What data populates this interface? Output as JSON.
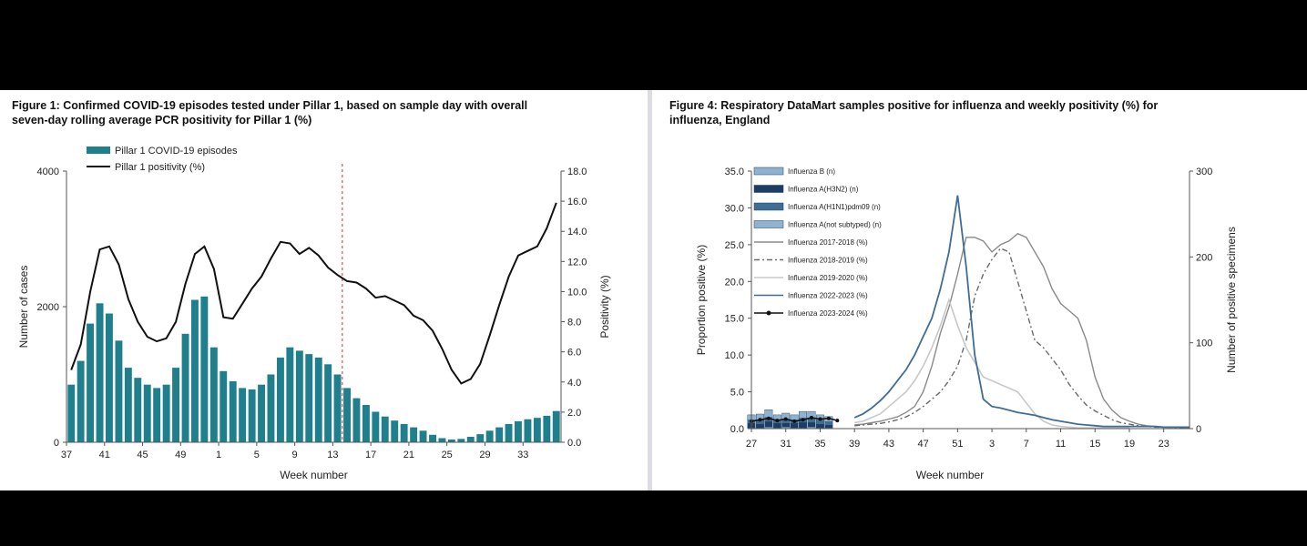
{
  "colors": {
    "teal": "#1f7f8c",
    "line_black": "#111111",
    "dash_red": "#d9534f",
    "blue_dark": "#1c3d64",
    "blue_mid": "#3f6d94",
    "blue_light": "#8fb3cf",
    "grey": "#8a8a8a",
    "grey_light": "#c8c8c8",
    "background": "#ffffff"
  },
  "chart_data": [
    {
      "type": "bar",
      "title": "Figure 1: Confirmed COVID-19 episodes tested under Pillar 1, based on sample day with overall seven-day rolling average PCR positivity for Pillar 1 (%)",
      "xlabel": "Week number",
      "ylabel": "Number of cases",
      "ylabel_right": "Positivity (%)",
      "ylim": [
        0,
        4000
      ],
      "y_ticks": [
        "0",
        "2000",
        "4000"
      ],
      "ylim_right": [
        0,
        18
      ],
      "y_ticks_right": [
        "0.0",
        "2.0",
        "4.0",
        "6.0",
        "8.0",
        "10.0",
        "12.0",
        "14.0",
        "16.0",
        "18.0"
      ],
      "x_ticks": [
        "37",
        "41",
        "45",
        "49",
        "1",
        "5",
        "9",
        "13",
        "17",
        "21",
        "25",
        "29",
        "33"
      ],
      "legend": {
        "position": "top-left",
        "entries": [
          "Pillar 1 COVID-19 episodes",
          "Pillar 1 positivity (%)"
        ]
      },
      "week_sequence": [
        "37",
        "38",
        "39",
        "40",
        "41",
        "42",
        "43",
        "44",
        "45",
        "46",
        "47",
        "48",
        "49",
        "50",
        "51",
        "52",
        "1",
        "2",
        "3",
        "4",
        "5",
        "6",
        "7",
        "8",
        "9",
        "10",
        "11",
        "12",
        "13",
        "14",
        "15",
        "16",
        "17",
        "18",
        "19",
        "20",
        "21",
        "22",
        "23",
        "24",
        "25",
        "26",
        "27",
        "28",
        "29",
        "30",
        "31",
        "32",
        "33",
        "34",
        "35",
        "36"
      ],
      "reference_line_week": "14",
      "series": [
        {
          "name": "Pillar 1 COVID-19 episodes",
          "kind": "bar",
          "axis": "left",
          "values": [
            850,
            1200,
            1750,
            2050,
            1900,
            1500,
            1100,
            950,
            850,
            800,
            850,
            1100,
            1600,
            2100,
            2150,
            1400,
            1050,
            900,
            800,
            780,
            850,
            1000,
            1250,
            1400,
            1350,
            1300,
            1250,
            1150,
            1000,
            800,
            650,
            550,
            450,
            380,
            320,
            270,
            220,
            170,
            110,
            60,
            40,
            50,
            80,
            120,
            170,
            220,
            270,
            310,
            340,
            360,
            390,
            460
          ]
        },
        {
          "name": "Pillar 1 positivity (%)",
          "kind": "line",
          "axis": "right",
          "values": [
            4.8,
            6.5,
            10.0,
            12.8,
            13.0,
            11.8,
            9.5,
            8.0,
            7.0,
            6.7,
            6.9,
            8.0,
            10.5,
            12.5,
            13.0,
            11.5,
            8.3,
            8.2,
            9.2,
            10.2,
            11.0,
            12.2,
            13.3,
            13.2,
            12.5,
            12.9,
            12.4,
            11.6,
            11.1,
            10.7,
            10.6,
            10.2,
            9.6,
            9.7,
            9.4,
            9.1,
            8.4,
            8.1,
            7.4,
            6.2,
            4.8,
            3.9,
            4.2,
            5.2,
            7.1,
            9.1,
            11.0,
            12.4,
            12.7,
            13.0,
            14.2,
            15.9
          ]
        }
      ]
    },
    {
      "type": "line",
      "title": "Figure 4: Respiratory DataMart samples positive for influenza and weekly positivity (%) for influenza, England",
      "xlabel": "Week number",
      "ylabel": "Proportion positive (%)",
      "ylabel_right": "Number of positive specimens",
      "ylim": [
        0,
        35
      ],
      "y_ticks": [
        "0.0",
        "5.0",
        "10.0",
        "15.0",
        "20.0",
        "25.0",
        "30.0",
        "35.0"
      ],
      "ylim_right": [
        0,
        300
      ],
      "y_ticks_right": [
        "0",
        "100",
        "200",
        "300"
      ],
      "x_ticks": [
        "27",
        "31",
        "35",
        "39",
        "43",
        "47",
        "51",
        "3",
        "7",
        "11",
        "15",
        "19",
        "23"
      ],
      "legend": {
        "position": "top-left"
      },
      "week_sequence": [
        "27",
        "28",
        "29",
        "30",
        "31",
        "32",
        "33",
        "34",
        "35",
        "36",
        "37",
        "38",
        "39",
        "40",
        "41",
        "42",
        "43",
        "44",
        "45",
        "46",
        "47",
        "48",
        "49",
        "50",
        "51",
        "52",
        "1",
        "2",
        "3",
        "4",
        "5",
        "6",
        "7",
        "8",
        "9",
        "10",
        "11",
        "12",
        "13",
        "14",
        "15",
        "16",
        "17",
        "18",
        "19",
        "20",
        "21",
        "22",
        "23",
        "24",
        "25",
        "26"
      ],
      "series": [
        {
          "name": "Influenza B (n)",
          "kind": "bar",
          "axis": "right",
          "values": [
            1,
            1,
            2,
            1,
            2,
            1,
            1,
            2,
            1,
            1
          ]
        },
        {
          "name": "Influenza A(H3N2) (n)",
          "kind": "bar",
          "axis": "right",
          "values": [
            5,
            4,
            6,
            5,
            4,
            5,
            6,
            5,
            4,
            3
          ]
        },
        {
          "name": "Influenza A(H1N1)pdm09 (n)",
          "kind": "bar",
          "axis": "right",
          "values": [
            4,
            5,
            5,
            4,
            5,
            4,
            5,
            4,
            5,
            4
          ]
        },
        {
          "name": "Influenza A(not subtyped) (n)",
          "kind": "bar",
          "axis": "right",
          "values": [
            6,
            7,
            9,
            6,
            7,
            6,
            8,
            9,
            6,
            6
          ]
        },
        {
          "name": "Influenza 2017-2018 (%)",
          "kind": "line",
          "axis": "left",
          "values": [
            null,
            null,
            null,
            null,
            null,
            null,
            null,
            null,
            null,
            null,
            null,
            null,
            0.5,
            0.6,
            0.8,
            1.0,
            1.3,
            1.6,
            2.2,
            3.0,
            5.0,
            8.5,
            13.0,
            16.5,
            21.0,
            26.0,
            26.0,
            25.5,
            24.0,
            25.0,
            25.5,
            26.5,
            26.0,
            24.0,
            22.0,
            19.0,
            17.0,
            16.0,
            15.0,
            12.0,
            7.0,
            4.0,
            2.5,
            1.5,
            1.0,
            0.6,
            0.4,
            0.3,
            0.2,
            0.2,
            0.2,
            0.1
          ]
        },
        {
          "name": "Influenza 2018-2019 (%)",
          "kind": "line",
          "axis": "left",
          "dash": "6 3 2 3",
          "values": [
            null,
            null,
            null,
            null,
            null,
            null,
            null,
            null,
            null,
            null,
            null,
            null,
            0.4,
            0.5,
            0.6,
            0.7,
            0.9,
            1.2,
            1.6,
            2.2,
            3.0,
            4.0,
            5.0,
            6.5,
            8.5,
            12.0,
            18.0,
            21.0,
            23.0,
            24.5,
            24.0,
            20.0,
            16.0,
            12.0,
            11.0,
            9.5,
            8.0,
            6.0,
            4.5,
            3.2,
            2.4,
            1.8,
            1.2,
            0.8,
            0.6,
            0.4,
            0.3,
            0.2,
            0.2,
            0.2,
            0.1,
            0.1
          ]
        },
        {
          "name": "Influenza 2019-2020 (%)",
          "kind": "line",
          "axis": "left",
          "values": [
            null,
            null,
            null,
            null,
            null,
            null,
            null,
            null,
            null,
            null,
            null,
            null,
            0.8,
            1.0,
            1.5,
            2.0,
            3.0,
            4.0,
            5.0,
            6.5,
            8.5,
            11.0,
            14.0,
            17.5,
            14.0,
            11.0,
            9.0,
            7.0,
            6.5,
            6.0,
            5.5,
            5.0,
            3.5,
            2.0,
            1.0,
            0.5,
            0.3,
            0.2,
            0.1,
            0.1,
            0.1,
            0.1,
            0.1,
            0.1,
            0.1,
            null,
            null,
            null,
            null,
            null,
            null,
            null
          ]
        },
        {
          "name": "Influenza 2022-2023 (%)",
          "kind": "line",
          "axis": "left",
          "values": [
            null,
            null,
            null,
            null,
            null,
            null,
            null,
            null,
            null,
            null,
            null,
            null,
            1.5,
            2.0,
            2.8,
            3.8,
            5.0,
            6.5,
            8.0,
            10.0,
            12.5,
            15.0,
            19.0,
            24.0,
            31.7,
            22.0,
            10.0,
            4.0,
            3.0,
            2.8,
            2.5,
            2.2,
            2.0,
            1.8,
            1.5,
            1.2,
            1.0,
            0.8,
            0.6,
            0.5,
            0.4,
            0.3,
            0.3,
            0.3,
            0.3,
            0.3,
            0.3,
            0.3,
            0.2,
            0.2,
            0.2,
            0.2
          ]
        },
        {
          "name": "Influenza 2023-2024 (%)",
          "kind": "line",
          "axis": "left",
          "markers": true,
          "values": [
            1.0,
            1.2,
            1.4,
            1.1,
            1.3,
            1.0,
            1.2,
            1.5,
            1.3,
            1.4,
            1.1
          ]
        }
      ]
    }
  ]
}
